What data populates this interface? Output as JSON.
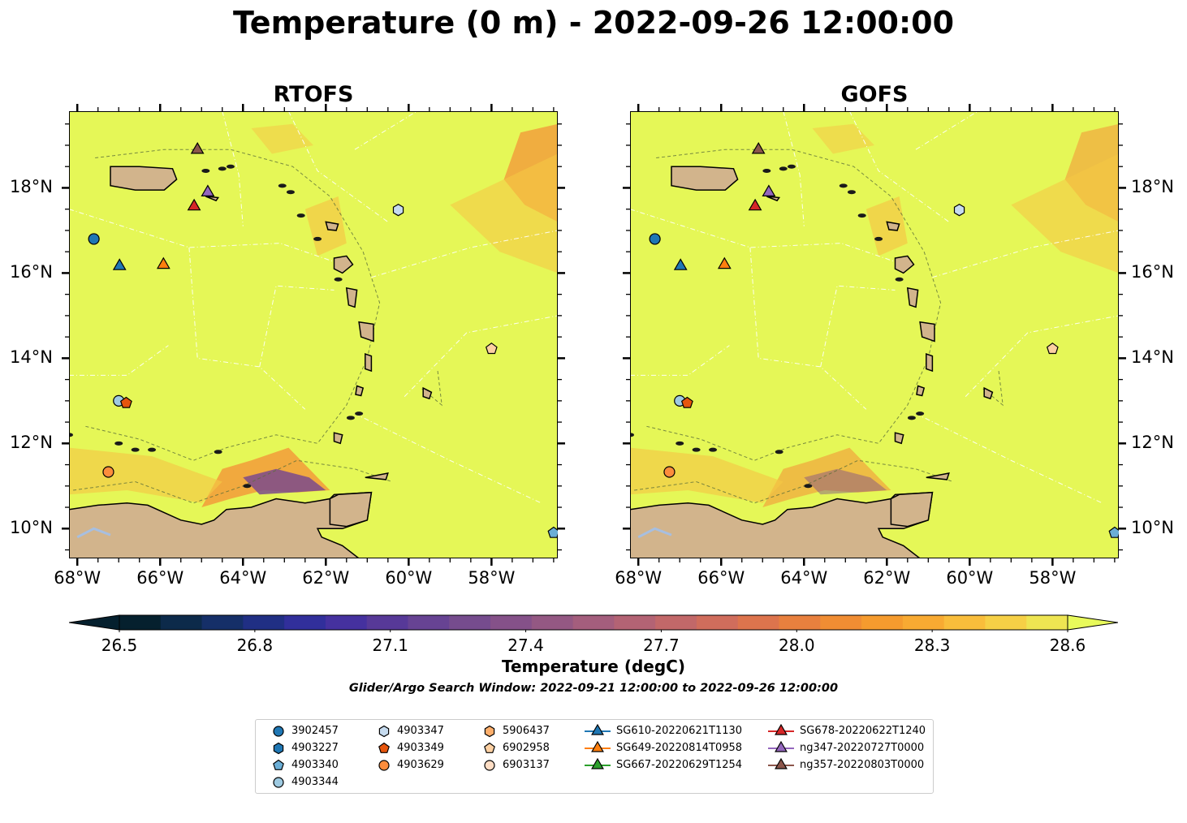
{
  "title": "Temperature (0 m) - 2022-09-26 12:00:00",
  "panels": [
    {
      "title": "RTOFS"
    },
    {
      "title": "GOFS"
    }
  ],
  "map_axes": {
    "lon_labels": [
      "68°W",
      "66°W",
      "64°W",
      "62°W",
      "60°W",
      "58°W"
    ],
    "lat_labels": [
      "18°N",
      "16°N",
      "14°N",
      "12°N",
      "10°N"
    ],
    "lon_range": [
      -68.2,
      -56.4
    ],
    "lat_range": [
      9.3,
      19.8
    ]
  },
  "colorbar": {
    "label": "Temperature (degC)",
    "tick_labels": [
      "26.5",
      "26.8",
      "27.1",
      "27.4",
      "27.7",
      "28.0",
      "28.3",
      "28.6"
    ],
    "range": [
      26.5,
      28.6
    ],
    "colormap": "thermal",
    "colors": [
      "#05202e",
      "#0c2a4a",
      "#152f68",
      "#202f84",
      "#312f9b",
      "#45319f",
      "#573998",
      "#674393",
      "#764c8e",
      "#855189",
      "#945883",
      "#a45e7d",
      "#b36374",
      "#c26869",
      "#d06d5c",
      "#dd744d",
      "#e8803e",
      "#f08d33",
      "#f59b2e",
      "#f8aa32",
      "#f9bd3b",
      "#f6d046",
      "#eee552"
    ],
    "extend_high_color": "#e8fa5b",
    "subtitle": "Glider/Argo Search Window: 2022-09-21 12:00:00 to 2022-09-26 12:00:00"
  },
  "colors": {
    "sea": "#e5f757",
    "land": "#d2b48c",
    "lake": "#a7bfe0",
    "warm_patch": "#f5c845",
    "orange_patch": "#f2a03c",
    "cool_patch": "#7b4a8c"
  },
  "markers": [
    {
      "label": "3902457",
      "shape": "circle",
      "color": "#1f77b4",
      "lon": -67.6,
      "lat": 16.8
    },
    {
      "label": "4903227",
      "shape": "hexagon",
      "color": "#1f77b4",
      "lon": null,
      "lat": null
    },
    {
      "label": "4903340",
      "shape": "pentagon",
      "color": "#6baed6",
      "lon": -56.5,
      "lat": 9.9
    },
    {
      "label": "4903344",
      "shape": "circle",
      "color": "#9ecae1",
      "lon": -67.0,
      "lat": 13.0
    },
    {
      "label": "4903347",
      "shape": "hexagon",
      "color": "#c6dbef",
      "lon": -60.25,
      "lat": 17.48
    },
    {
      "label": "4903349",
      "shape": "pentagon",
      "color": "#e6550d",
      "lon": -66.82,
      "lat": 12.95
    },
    {
      "label": "4903629",
      "shape": "circle",
      "color": "#fd8d3c",
      "lon": -67.25,
      "lat": 11.33
    },
    {
      "label": "5906437",
      "shape": "hexagon",
      "color": "#fdae6b",
      "lon": null,
      "lat": null
    },
    {
      "label": "6902958",
      "shape": "pentagon",
      "color": "#fdd0a2",
      "lon": -58.0,
      "lat": 14.22
    },
    {
      "label": "6903137",
      "shape": "circle",
      "color": "#feddc4",
      "lon": null,
      "lat": null
    },
    {
      "label": "SG610-20220621T1130",
      "shape": "triangle",
      "color": "#1f77b4",
      "line": true,
      "lon": -66.98,
      "lat": 16.2
    },
    {
      "label": "SG649-20220814T0958",
      "shape": "triangle",
      "color": "#ff7f0e",
      "line": true,
      "lon": -65.92,
      "lat": 16.23
    },
    {
      "label": "SG667-20220629T1254",
      "shape": "triangle",
      "color": "#2ca02c",
      "line": true,
      "lon": null,
      "lat": null
    },
    {
      "label": "SG678-20220622T1240",
      "shape": "triangle",
      "color": "#d62728",
      "line": true,
      "lon": -65.18,
      "lat": 17.6
    },
    {
      "label": "ng347-20220727T0000",
      "shape": "triangle",
      "color": "#9467bd",
      "line": true,
      "lon": -64.85,
      "lat": 17.93
    },
    {
      "label": "ng357-20220803T0000",
      "shape": "triangle",
      "color": "#8c564b",
      "line": true,
      "lon": -65.1,
      "lat": 18.93
    }
  ]
}
